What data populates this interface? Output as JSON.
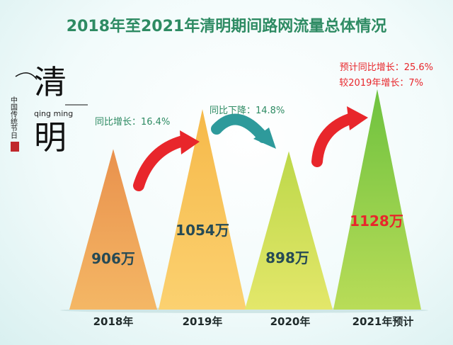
{
  "chart_data": {
    "type": "bar",
    "title": "2018年至2021年清明期间路网流量总体情况",
    "categories": [
      "2018年",
      "2019年",
      "2020年",
      "2021年预计"
    ],
    "values": [
      906,
      1054,
      898,
      1128
    ],
    "value_labels": [
      "906万",
      "1054万",
      "898万",
      "1128万"
    ],
    "annotations": [
      {
        "text": "同比增长：16.4%"
      },
      {
        "text": "同比下降：14.8%"
      },
      {
        "text": "预计同比增长：25.6%"
      },
      {
        "text": "较2019年增长：7%"
      }
    ],
    "colors": {
      "title": "#2e8b63",
      "bar_2018": "#e4864a",
      "bar_2019": "#f4b24e",
      "bar_2020": "#c9d84a",
      "bar_2021": "#7cc842",
      "label_dark": "#264a55",
      "label_highlight": "#e8262b",
      "arrow_red": "#e8262b",
      "arrow_teal": "#2e9a9b"
    }
  },
  "logo": {
    "char_top": "清",
    "char_bottom": "明",
    "pinyin": "qing ming",
    "vertical_text": "中国传统节日"
  }
}
